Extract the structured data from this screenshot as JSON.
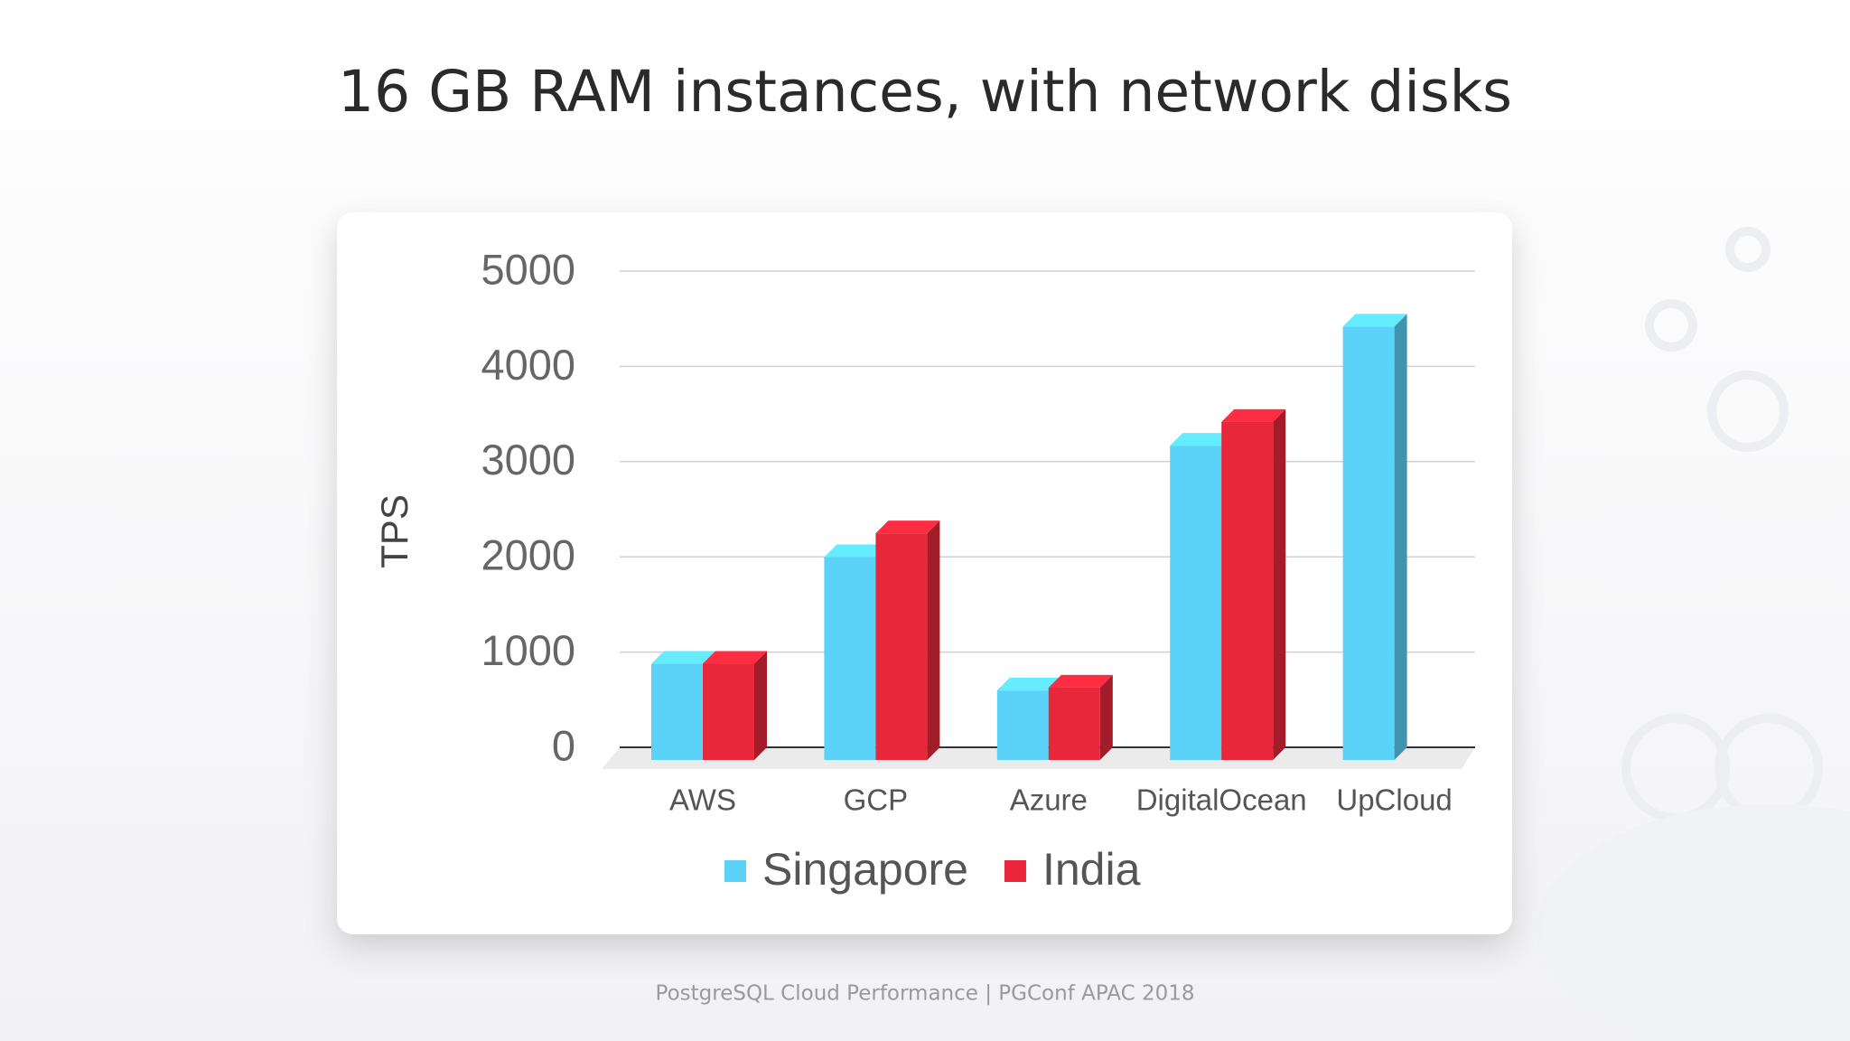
{
  "chart_data": {
    "type": "bar3d",
    "title": "16 GB RAM instances, with network disks",
    "y_label": "TPS",
    "categories": [
      "AWS",
      "GCP",
      "Azure",
      "DigitalOcean",
      "UpCloud"
    ],
    "series": [
      {
        "name": "Singapore",
        "color": "#5bd3f8",
        "values": [
          1010,
          2130,
          730,
          3300,
          4550
        ]
      },
      {
        "name": "India",
        "color": "#e8283a",
        "values": [
          1010,
          2380,
          760,
          3550,
          null
        ]
      }
    ],
    "ylim": [
      0,
      5000
    ],
    "yticks": [
      0,
      1000,
      2000,
      3000,
      4000,
      5000
    ],
    "grid": true,
    "legend": "bottom"
  },
  "footer": "PostgreSQL Cloud Performance | PGConf APAC 2018"
}
